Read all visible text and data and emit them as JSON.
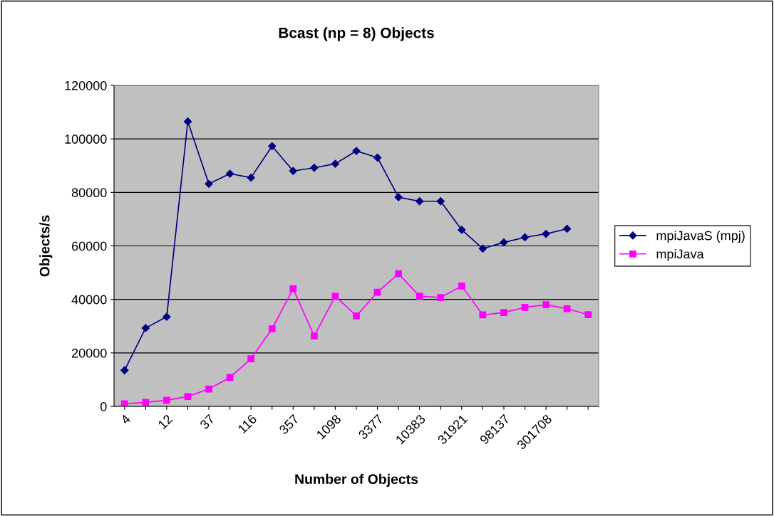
{
  "chart_data": {
    "type": "line",
    "title": "Bcast (np = 8) Objects",
    "xlabel": "Number of Objects",
    "ylabel": "Objects/s",
    "categories": [
      "4",
      null,
      "12",
      null,
      "37",
      null,
      "116",
      null,
      "357",
      null,
      "1098",
      null,
      "3377",
      null,
      "10383",
      null,
      "31921",
      null,
      "98137",
      null,
      "301708",
      null,
      null
    ],
    "series": [
      {
        "name": "mpiJavaS (mpj)",
        "color": "#000080",
        "marker": "diamond",
        "values": [
          13500,
          29300,
          33500,
          106500,
          83200,
          87000,
          85500,
          97300,
          88000,
          89200,
          90700,
          95500,
          93000,
          78200,
          76700,
          76700,
          66000,
          59000,
          61300,
          63200,
          64500,
          66400,
          null
        ]
      },
      {
        "name": "mpiJava",
        "color": "#ff00ff",
        "marker": "square",
        "values": [
          1000,
          1500,
          2300,
          3700,
          6500,
          10800,
          17800,
          29000,
          44000,
          26300,
          41200,
          33800,
          42700,
          49600,
          41200,
          40700,
          45000,
          34200,
          35100,
          37000,
          38000,
          36500,
          34300
        ]
      }
    ],
    "ylim": [
      0,
      120000
    ],
    "yticks": [
      0,
      20000,
      40000,
      60000,
      80000,
      100000,
      120000
    ],
    "grid": "y",
    "legend": "right",
    "line_style": "solid"
  }
}
